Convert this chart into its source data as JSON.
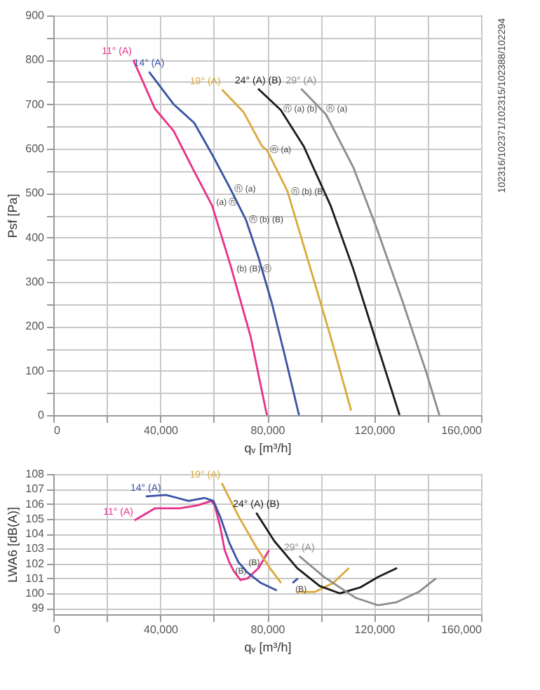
{
  "chart_data": [
    {
      "type": "line",
      "xlabel": "qᵥ [m³/h]",
      "ylabel": "Psf [Pa]",
      "grid": true,
      "legend": false,
      "xlim": [
        0,
        160000
      ],
      "ylim": [
        0,
        900
      ],
      "xticks": [
        0,
        {
          "value": 20000,
          "label": null
        },
        {
          "value": 40000,
          "label": "40,000"
        },
        {
          "value": 60000,
          "label": null
        },
        {
          "value": 80000,
          "label": "80,000"
        },
        {
          "value": 100000,
          "label": null
        },
        {
          "value": 120000,
          "label": "120,000"
        },
        {
          "value": 140000,
          "label": null
        },
        {
          "value": 160000,
          "label": "160,000"
        }
      ],
      "yticks": [
        0,
        {
          "value": 50,
          "label": null
        },
        100,
        {
          "value": 150,
          "label": null
        },
        200,
        {
          "value": 250,
          "label": null
        },
        300,
        {
          "value": 350,
          "label": null
        },
        400,
        {
          "value": 450,
          "label": null
        },
        500,
        {
          "value": 550,
          "label": null
        },
        600,
        {
          "value": 650,
          "label": null
        },
        700,
        {
          "value": 750,
          "label": null
        },
        800,
        {
          "value": 850,
          "label": null
        },
        900
      ],
      "series": [
        {
          "name": "11° (A)",
          "color": "#e8308a",
          "x": [
            29900,
            38000,
            45000,
            52700,
            59400,
            66200,
            73800,
            79700,
            80000
          ],
          "values": [
            800,
            690,
            640,
            549,
            472,
            339,
            177,
            5,
            0
          ]
        },
        {
          "name": "14° (A)",
          "color": "#3a54a4",
          "x": [
            35800,
            45000,
            52700,
            59400,
            66200,
            72100,
            76600,
            81700,
            86800,
            91900
          ],
          "values": [
            773,
            700,
            658,
            587,
            510,
            439,
            358,
            253,
            129,
            0
          ]
        },
        {
          "name": "19° (A)",
          "color": "#d9a93a",
          "x": [
            63100,
            71200,
            78000,
            80000,
            87600,
            95300,
            103700,
            111400
          ],
          "values": [
            733,
            682,
            606,
            596,
            504,
            348,
            177,
            10
          ]
        },
        {
          "name": "24° (A) (B)",
          "color": "#1a1a1a",
          "x": [
            76600,
            85100,
            93600,
            103700,
            112200,
            120700,
            129500
          ],
          "values": [
            735,
            687,
            606,
            472,
            329,
            167,
            0
          ]
        },
        {
          "name": "29° (A)",
          "color": "#8c8c8c",
          "x": [
            92700,
            102000,
            112200,
            120700,
            130800,
            139300,
            144400
          ],
          "values": [
            735,
            677,
            558,
            425,
            253,
            100,
            0
          ]
        }
      ],
      "annotations": [
        {
          "text": "(a) ⓝ",
          "x": 59400,
          "y": 480
        },
        {
          "text": "(b) (B) ⓝ",
          "x": 67000,
          "y": 330
        },
        {
          "text": "ⓝ (a)",
          "x": 66200,
          "y": 510
        },
        {
          "text": "ⓝ (b) (B)",
          "x": 71500,
          "y": 440
        },
        {
          "text": "ⓝ (a)",
          "x": 79500,
          "y": 598
        },
        {
          "text": "ⓝ (b) (B)",
          "x": 87300,
          "y": 504
        },
        {
          "text": "ⓝ (a) (b)",
          "x": 84500,
          "y": 690
        },
        {
          "text": "ⓝ (a)",
          "x": 100500,
          "y": 690
        },
        "102316/102371/102315/102388/102294"
      ]
    },
    {
      "type": "line",
      "xlabel": "qᵥ [m³/h]",
      "ylabel": "LWA6 [dB(A)]",
      "grid": true,
      "legend": false,
      "xlim": [
        0,
        160000
      ],
      "ylim": [
        98.6,
        108
      ],
      "xticks": [
        0,
        {
          "value": 20000,
          "label": null
        },
        {
          "value": 40000,
          "label": "40,000"
        },
        {
          "value": 60000,
          "label": null
        },
        {
          "value": 80000,
          "label": "80,000"
        },
        {
          "value": 100000,
          "label": null
        },
        {
          "value": 120000,
          "label": "120,000"
        },
        {
          "value": 140000,
          "label": null
        },
        {
          "value": 160000,
          "label": "160,000"
        }
      ],
      "yticks": [
        99,
        100,
        101,
        102,
        103,
        104,
        105,
        106,
        107,
        108
      ],
      "series": [
        {
          "name": "11° (A)",
          "color": "#e8308a",
          "x": [
            30400,
            38000,
            47300,
            54000,
            59100,
            60400,
            62500,
            64100,
            65800,
            67500,
            70000,
            72600,
            76800,
            80700
          ],
          "values": [
            104.9,
            105.7,
            105.7,
            105.9,
            106.2,
            105.9,
            104.4,
            102.9,
            102.1,
            101.5,
            100.9,
            101.0,
            101.7,
            102.9
          ]
        },
        {
          "name": "14° (A)",
          "color": "#3a54a4",
          "x": [
            34600,
            42200,
            50600,
            56500,
            59900,
            62500,
            65800,
            69200,
            72600,
            77600,
            83600,
            86500,
            89500,
            91500
          ],
          "values": [
            106.5,
            106.6,
            106.2,
            106.4,
            106.2,
            105.1,
            103.4,
            102.1,
            101.4,
            100.7,
            100.2,
            null,
            100.7,
            101.0
          ]
        },
        {
          "name": "19° (A)",
          "color": "#d9a93a",
          "x": [
            63000,
            69200,
            75900,
            81000,
            85200,
            88000,
            91200,
            97900,
            104700,
            110600
          ],
          "values": [
            107.4,
            105.2,
            103.1,
            101.7,
            100.7,
            null,
            100.1,
            100.1,
            100.7,
            101.7
          ]
        },
        {
          "name": "24° (A) (B)",
          "color": "#1a1a1a",
          "x": [
            75900,
            82700,
            91200,
            99600,
            107200,
            114800,
            121500,
            128600
          ],
          "values": [
            105.4,
            103.5,
            101.7,
            100.5,
            100.0,
            100.4,
            101.1,
            101.7
          ]
        },
        {
          "name": "29° (A)",
          "color": "#8c8c8c",
          "x": [
            92000,
            101300,
            113100,
            121500,
            128300,
            136700,
            143100
          ],
          "values": [
            102.5,
            101.1,
            99.7,
            99.2,
            99.4,
            100.1,
            101.0
          ]
        }
      ],
      "annotations": [
        {
          "text": "(B)",
          "x": 66500,
          "y": 101.5
        },
        {
          "text": "(B)",
          "x": 71500,
          "y": 102.1
        },
        {
          "text": "(B)",
          "x": 89000,
          "y": 100.3
        }
      ]
    }
  ]
}
